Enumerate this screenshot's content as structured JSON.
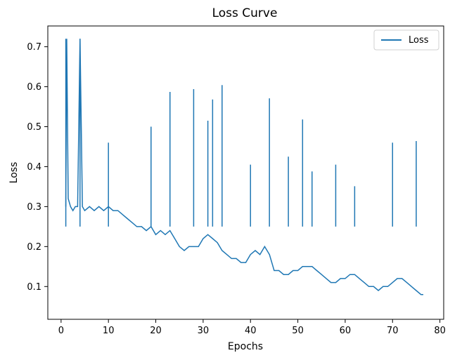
{
  "chart_data": {
    "type": "line",
    "title": "Loss Curve",
    "xlabel": "Epochs",
    "ylabel": "Loss",
    "xlim": [
      -2.8,
      80.8
    ],
    "ylim": [
      0.018,
      0.752
    ],
    "xticks": [
      0,
      10,
      20,
      30,
      40,
      50,
      60,
      70,
      80
    ],
    "yticks": [
      0.1,
      0.2,
      0.3,
      0.4,
      0.5,
      0.6,
      0.7
    ],
    "ytick_labels": [
      "0.1",
      "0.2",
      "0.3",
      "0.4",
      "0.5",
      "0.6",
      "0.7"
    ],
    "grid": false,
    "legend": {
      "position": "top-right",
      "entries": [
        "Loss"
      ]
    },
    "series": [
      {
        "name": "Loss",
        "color": "#1f77b4",
        "x": [
          1.0,
          1.2,
          1.5,
          2.0,
          2.5,
          3.0,
          3.5,
          4.0,
          4.5,
          5.0,
          6.0,
          7.0,
          8.0,
          9.0,
          10.0,
          11.0,
          12.0,
          13.0,
          14.0,
          15.0,
          16.0,
          17.0,
          18.0,
          19.0,
          20.0,
          21.0,
          22.0,
          23.0,
          24.0,
          25.0,
          26.0,
          27.0,
          28.0,
          29.0,
          30.0,
          31.0,
          32.0,
          33.0,
          34.0,
          35.0,
          36.0,
          37.0,
          38.0,
          39.0,
          40.0,
          41.0,
          42.0,
          43.0,
          44.0,
          45.0,
          46.0,
          47.0,
          48.0,
          49.0,
          50.0,
          51.0,
          52.0,
          53.0,
          54.0,
          55.0,
          56.0,
          57.0,
          58.0,
          59.0,
          60.0,
          61.0,
          62.0,
          63.0,
          64.0,
          65.0,
          66.0,
          67.0,
          68.0,
          69.0,
          70.0,
          71.0,
          72.0,
          73.0,
          74.0,
          75.0,
          76.0,
          76.5
        ],
        "y": [
          0.3,
          0.72,
          0.32,
          0.3,
          0.29,
          0.3,
          0.3,
          0.72,
          0.3,
          0.29,
          0.3,
          0.29,
          0.3,
          0.29,
          0.3,
          0.29,
          0.29,
          0.28,
          0.27,
          0.26,
          0.25,
          0.25,
          0.24,
          0.25,
          0.23,
          0.24,
          0.23,
          0.24,
          0.22,
          0.2,
          0.19,
          0.2,
          0.2,
          0.2,
          0.22,
          0.23,
          0.22,
          0.21,
          0.19,
          0.18,
          0.17,
          0.17,
          0.16,
          0.16,
          0.18,
          0.19,
          0.18,
          0.2,
          0.18,
          0.14,
          0.14,
          0.13,
          0.13,
          0.14,
          0.14,
          0.15,
          0.15,
          0.15,
          0.14,
          0.13,
          0.12,
          0.11,
          0.11,
          0.12,
          0.12,
          0.13,
          0.13,
          0.12,
          0.11,
          0.1,
          0.1,
          0.09,
          0.1,
          0.1,
          0.11,
          0.12,
          0.12,
          0.11,
          0.1,
          0.09,
          0.08,
          0.08
        ]
      }
    ],
    "spikes": [
      {
        "x": 1.0,
        "y": 0.72
      },
      {
        "x": 4.0,
        "y": 0.72
      },
      {
        "x": 10.0,
        "y": 0.46
      },
      {
        "x": 19.0,
        "y": 0.5
      },
      {
        "x": 23.0,
        "y": 0.587
      },
      {
        "x": 28.0,
        "y": 0.594
      },
      {
        "x": 31.0,
        "y": 0.515
      },
      {
        "x": 32.0,
        "y": 0.568
      },
      {
        "x": 34.0,
        "y": 0.604
      },
      {
        "x": 40.0,
        "y": 0.405
      },
      {
        "x": 44.0,
        "y": 0.571
      },
      {
        "x": 48.0,
        "y": 0.425
      },
      {
        "x": 51.0,
        "y": 0.518
      },
      {
        "x": 53.0,
        "y": 0.388
      },
      {
        "x": 58.0,
        "y": 0.405
      },
      {
        "x": 62.0,
        "y": 0.351
      },
      {
        "x": 70.0,
        "y": 0.46
      },
      {
        "x": 75.0,
        "y": 0.464
      }
    ]
  }
}
